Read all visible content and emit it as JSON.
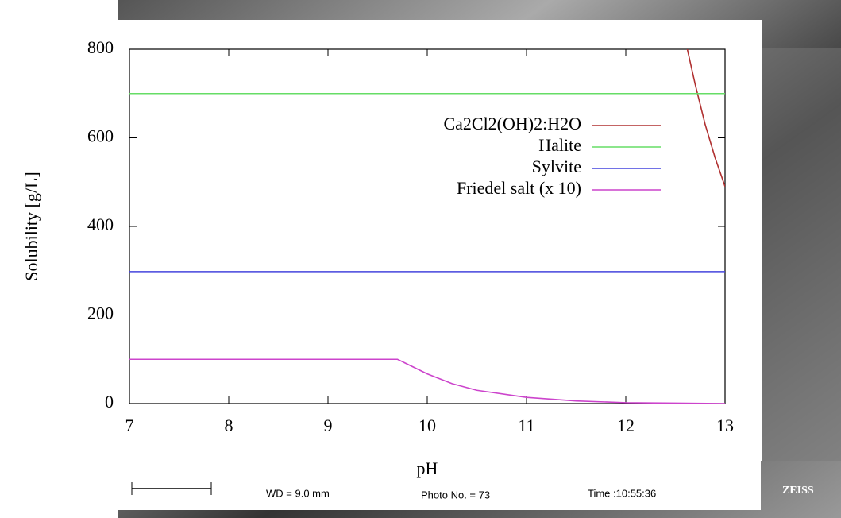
{
  "chart_data": {
    "type": "line",
    "xlabel": "pH",
    "ylabel": "Solubility [g/L]",
    "xlim": [
      7,
      13
    ],
    "xticks": [
      7,
      8,
      9,
      10,
      11,
      12,
      13
    ],
    "ylim": [
      0,
      800
    ],
    "yticks": [
      0,
      200,
      400,
      600,
      800
    ],
    "legend": "top-right",
    "series": [
      {
        "name": "Ca2Cl2(OH)2:H2O",
        "color": "#b03030",
        "x": [
          12.62,
          12.7,
          12.8,
          12.9,
          13
        ],
        "values": [
          800,
          720,
          630,
          555,
          490
        ]
      },
      {
        "name": "Halite",
        "color": "#66dd66",
        "x": [
          7,
          13
        ],
        "values": [
          700,
          700
        ]
      },
      {
        "name": "Sylvite",
        "color": "#4444dd",
        "x": [
          7,
          13
        ],
        "values": [
          298,
          298
        ]
      },
      {
        "name": "Friedel salt (x 10)",
        "color": "#cc44cc",
        "x": [
          7,
          9.7,
          10,
          10.25,
          10.5,
          11,
          11.5,
          12,
          12.5,
          13
        ],
        "values": [
          100,
          100,
          67,
          45,
          30,
          14,
          6,
          2,
          1,
          0
        ]
      }
    ]
  },
  "footer": {
    "wd": "WD =  9.0 mm",
    "photo": "Photo No. = 73",
    "time": "Time :10:55:36",
    "brand": "ZEISS"
  }
}
